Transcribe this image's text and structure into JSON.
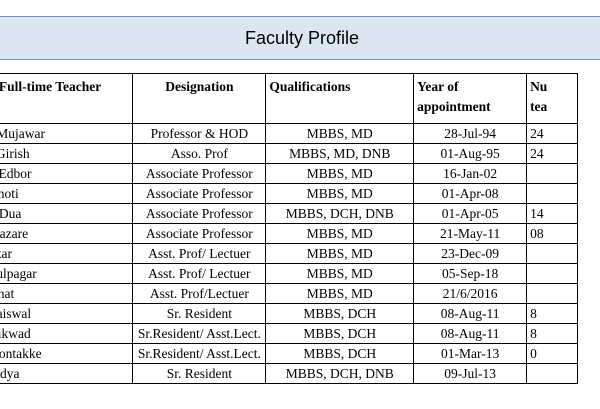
{
  "banner": {
    "title": "Faculty Profile"
  },
  "table": {
    "headers": {
      "name": "he Full-time Teacher",
      "designation": "Designation",
      "qualifications": "Qualifications",
      "year": "Year of appointment",
      "number": "Nu tea"
    },
    "rows": [
      {
        "name": ".S.Mujawar",
        "designation": "Professor  & HOD",
        "qualifications": "MBBS, MD",
        "year": "28-Jul-94",
        "number": "24"
      },
      {
        "name": "ni Girish",
        "designation": "Asso. Prof",
        "qualifications": "MBBS, MD, DNB",
        "year": "01-Aug-95",
        "number": "24"
      },
      {
        "name": "A. Edbor",
        "designation": "Associate Professor",
        "qualifications": "MBBS, MD",
        "year": "16-Jan-02",
        "number": ""
      },
      {
        "name": "Nanoti",
        "designation": "Associate Professor",
        "qualifications": "MBBS, MD",
        "year": "01-Apr-08",
        "number": ""
      },
      {
        "name": "hu Dua",
        "designation": "Associate Professor",
        "qualifications": "MBBS, DCH, DNB",
        "year": "01-Apr-05",
        "number": "14"
      },
      {
        "name": "p Pazare",
        "designation": "Associate Professor",
        "qualifications": "MBBS, MD",
        "year": "21-May-11",
        "number": "08"
      },
      {
        "name": "nekar",
        "designation": "Asst. Prof/ Lectuer",
        "qualifications": "MBBS, MD",
        "year": "23-Dec-09",
        "number": ""
      },
      {
        "name": "Phulpagar",
        "designation": "Asst. Prof/ Lectuer",
        "qualifications": "MBBS, MD",
        "year": "05-Sep-18",
        "number": ""
      },
      {
        "name": "Dahat",
        "designation": "Asst. Prof/Lectuer",
        "qualifications": "MBBS, MD",
        "year": "21/6/2016",
        "number": ""
      },
      {
        "name": "a Jaiswal",
        "designation": "Sr. Resident",
        "qualifications": "MBBS, DCH",
        "year": "08-Aug-11",
        "number": "8"
      },
      {
        "name": "Gaikwad",
        "designation": "Sr.Resident/ Asst.Lect.",
        "qualifications": "MBBS, DCH",
        "year": "08-Aug-11",
        "number": "8"
      },
      {
        "name": "a Sontakke",
        "designation": "Sr.Resident/ Asst.Lect.",
        "qualifications": "MBBS, DCH",
        "year": "01-Mar-13",
        "number": "0"
      },
      {
        "name": "Vaidya",
        "designation": "Sr. Resident",
        "qualifications": "MBBS, DCH, DNB",
        "year": "09-Jul-13",
        "number": ""
      }
    ]
  }
}
